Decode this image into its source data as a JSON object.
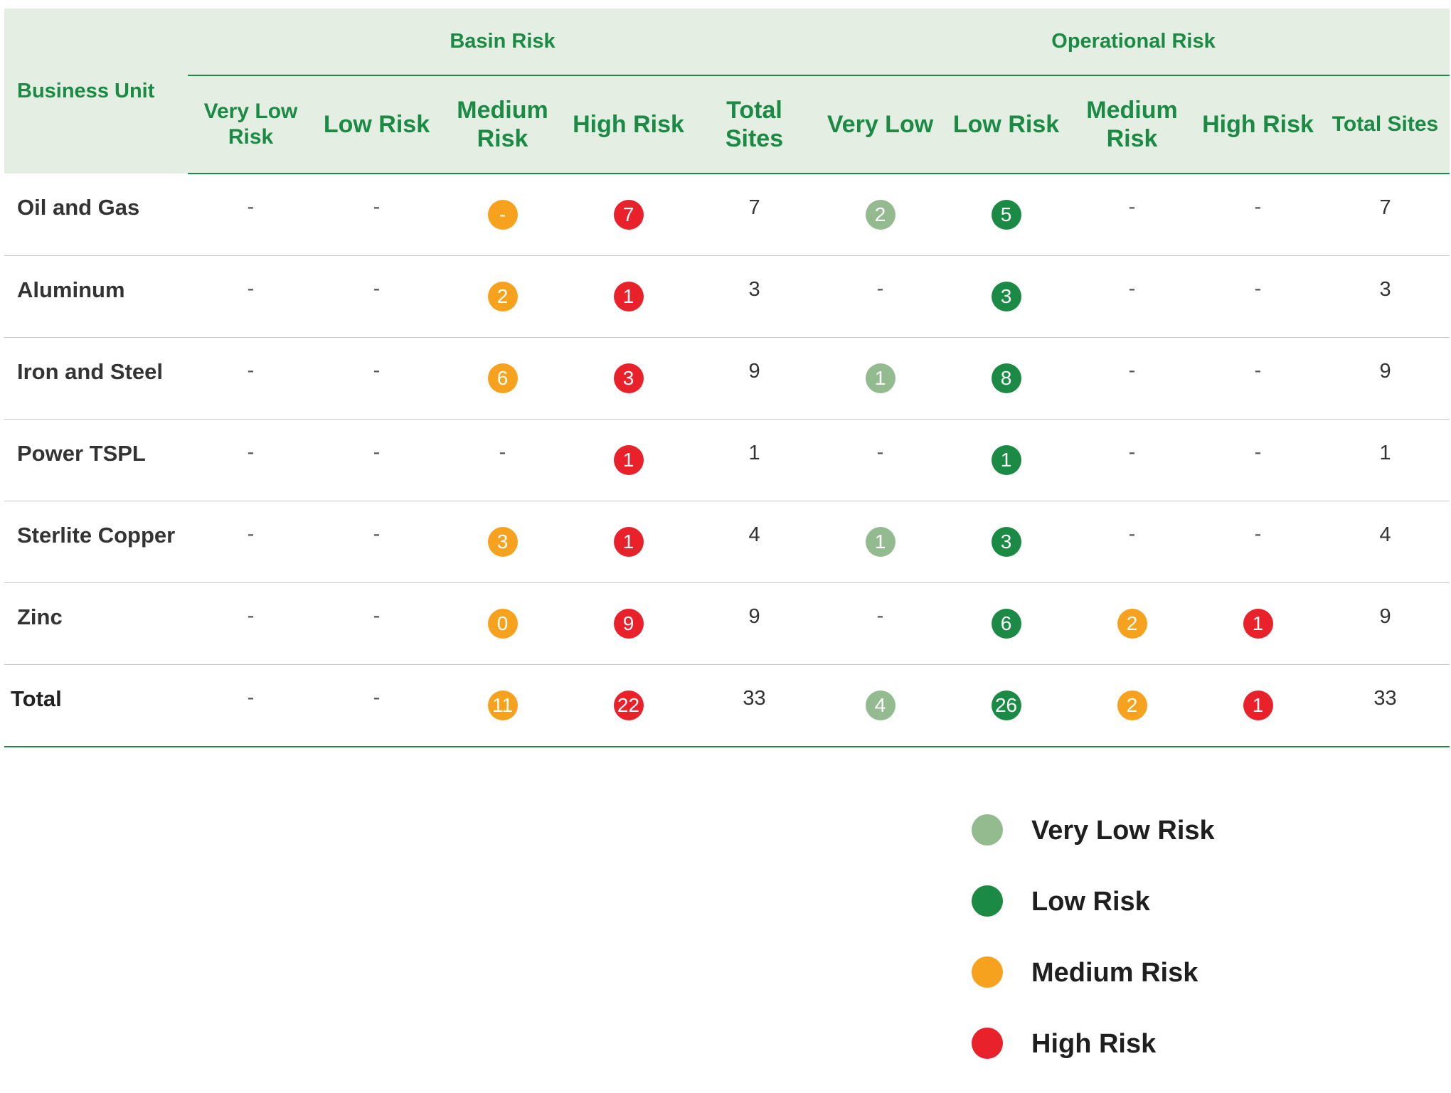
{
  "colors": {
    "very_low": "#93bb8f",
    "low": "#1a8a44",
    "medium": "#f6a21e",
    "high": "#e8212b",
    "header_bg": "#e4eee2",
    "header_text": "#1a8a44"
  },
  "table": {
    "business_unit_header": "Business Unit",
    "groups": [
      "Basin Risk",
      "Operational Risk"
    ],
    "columns": [
      {
        "label": "Very Low Risk"
      },
      {
        "label": "Low Risk"
      },
      {
        "label": "Medium Risk"
      },
      {
        "label": "High Risk"
      },
      {
        "label": "Total Sites"
      },
      {
        "label": "Very Low"
      },
      {
        "label": "Low Risk"
      },
      {
        "label": "Medium Risk"
      },
      {
        "label": "High Risk"
      },
      {
        "label": "Total Sites"
      }
    ],
    "rows": [
      {
        "unit": "Oil and Gas",
        "cells": [
          {
            "value": "-",
            "level": ""
          },
          {
            "value": "-",
            "level": ""
          },
          {
            "value": "-",
            "level": "medium"
          },
          {
            "value": "7",
            "level": "high"
          },
          {
            "value": "7",
            "level": ""
          },
          {
            "value": "2",
            "level": "very_low"
          },
          {
            "value": "5",
            "level": "low"
          },
          {
            "value": "-",
            "level": ""
          },
          {
            "value": "-",
            "level": ""
          },
          {
            "value": "7",
            "level": ""
          }
        ]
      },
      {
        "unit": "Aluminum",
        "cells": [
          {
            "value": "-",
            "level": ""
          },
          {
            "value": "-",
            "level": ""
          },
          {
            "value": "2",
            "level": "medium"
          },
          {
            "value": "1",
            "level": "high"
          },
          {
            "value": "3",
            "level": ""
          },
          {
            "value": "-",
            "level": ""
          },
          {
            "value": "3",
            "level": "low"
          },
          {
            "value": "-",
            "level": ""
          },
          {
            "value": "-",
            "level": ""
          },
          {
            "value": "3",
            "level": ""
          }
        ]
      },
      {
        "unit": "Iron and Steel",
        "cells": [
          {
            "value": "-",
            "level": ""
          },
          {
            "value": "-",
            "level": ""
          },
          {
            "value": "6",
            "level": "medium"
          },
          {
            "value": "3",
            "level": "high"
          },
          {
            "value": "9",
            "level": ""
          },
          {
            "value": "1",
            "level": "very_low"
          },
          {
            "value": "8",
            "level": "low"
          },
          {
            "value": "-",
            "level": ""
          },
          {
            "value": "-",
            "level": ""
          },
          {
            "value": "9",
            "level": ""
          }
        ]
      },
      {
        "unit": "Power TSPL",
        "cells": [
          {
            "value": "-",
            "level": ""
          },
          {
            "value": "-",
            "level": ""
          },
          {
            "value": "-",
            "level": ""
          },
          {
            "value": "1",
            "level": "high"
          },
          {
            "value": "1",
            "level": ""
          },
          {
            "value": "-",
            "level": ""
          },
          {
            "value": "1",
            "level": "low"
          },
          {
            "value": "-",
            "level": ""
          },
          {
            "value": "-",
            "level": ""
          },
          {
            "value": "1",
            "level": ""
          }
        ]
      },
      {
        "unit": "Sterlite Copper",
        "cells": [
          {
            "value": "-",
            "level": ""
          },
          {
            "value": "-",
            "level": ""
          },
          {
            "value": "3",
            "level": "medium"
          },
          {
            "value": "1",
            "level": "high"
          },
          {
            "value": "4",
            "level": ""
          },
          {
            "value": "1",
            "level": "very_low"
          },
          {
            "value": "3",
            "level": "low"
          },
          {
            "value": "-",
            "level": ""
          },
          {
            "value": "-",
            "level": ""
          },
          {
            "value": "4",
            "level": ""
          }
        ]
      },
      {
        "unit": "Zinc",
        "cells": [
          {
            "value": "-",
            "level": ""
          },
          {
            "value": "-",
            "level": ""
          },
          {
            "value": "0",
            "level": "medium"
          },
          {
            "value": "9",
            "level": "high"
          },
          {
            "value": "9",
            "level": ""
          },
          {
            "value": "-",
            "level": ""
          },
          {
            "value": "6",
            "level": "low"
          },
          {
            "value": "2",
            "level": "medium"
          },
          {
            "value": "1",
            "level": "high"
          },
          {
            "value": "9",
            "level": ""
          }
        ]
      },
      {
        "unit": "Total",
        "cells": [
          {
            "value": "-",
            "level": ""
          },
          {
            "value": "-",
            "level": ""
          },
          {
            "value": "11",
            "level": "medium"
          },
          {
            "value": "22",
            "level": "high"
          },
          {
            "value": "33",
            "level": ""
          },
          {
            "value": "4",
            "level": "very_low"
          },
          {
            "value": "26",
            "level": "low"
          },
          {
            "value": "2",
            "level": "medium"
          },
          {
            "value": "1",
            "level": "high"
          },
          {
            "value": "33",
            "level": ""
          }
        ]
      }
    ]
  },
  "legend": [
    {
      "label": "Very Low Risk",
      "level": "very_low"
    },
    {
      "label": "Low Risk",
      "level": "low"
    },
    {
      "label": "Medium Risk",
      "level": "medium"
    },
    {
      "label": "High Risk",
      "level": "high"
    }
  ]
}
